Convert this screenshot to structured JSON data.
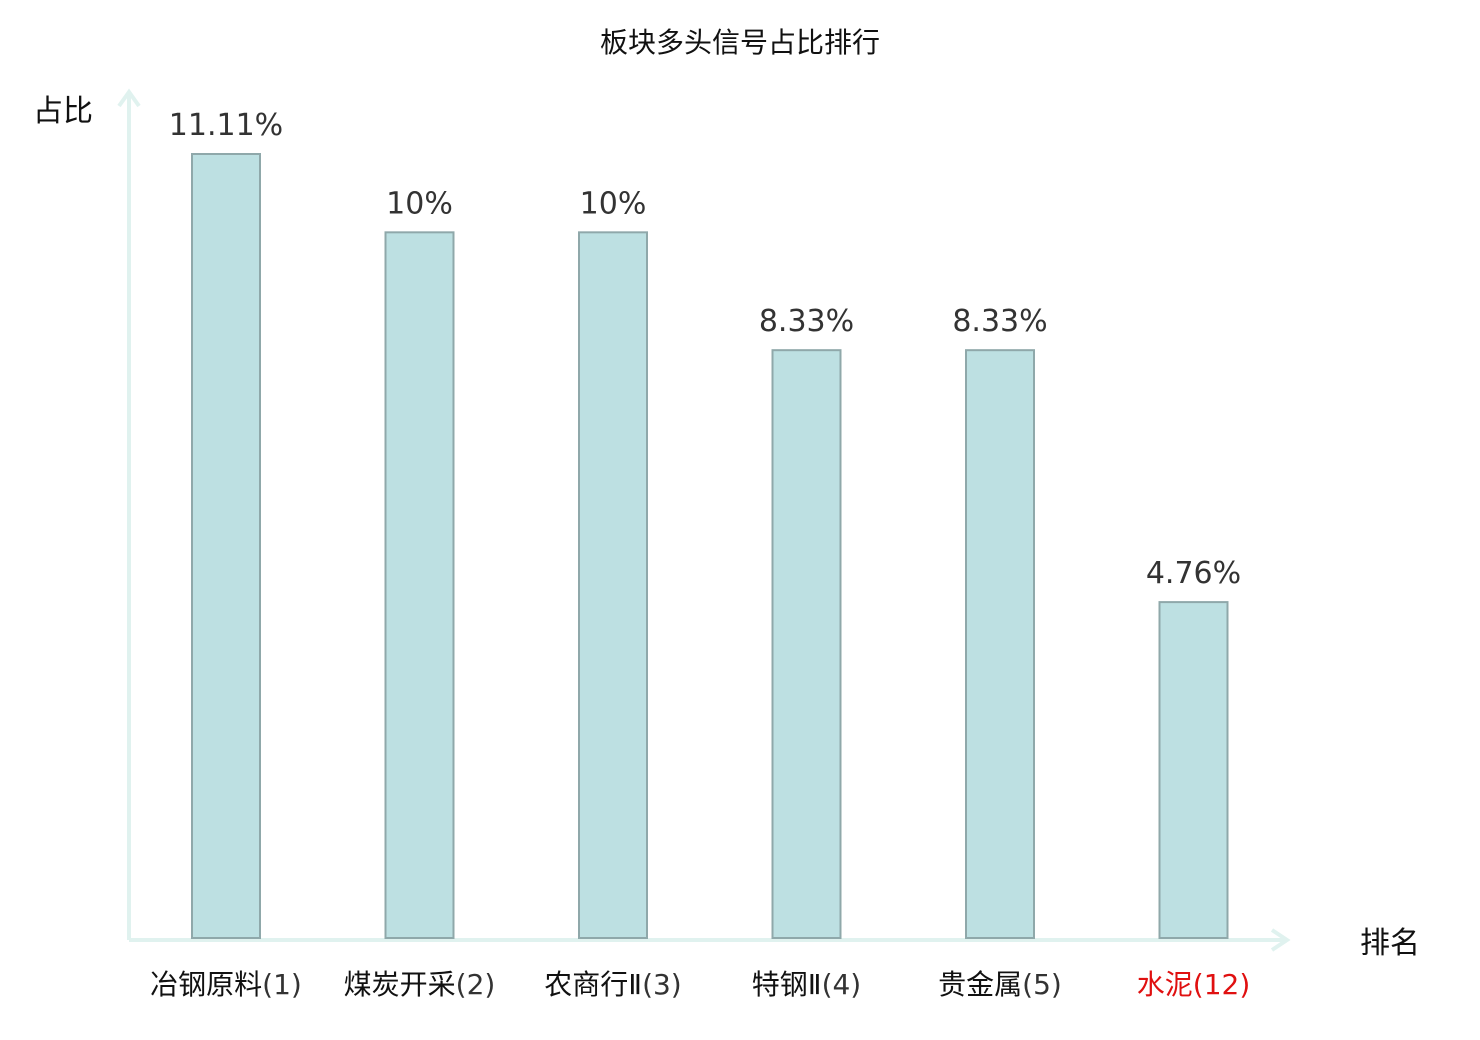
{
  "chart_data": {
    "type": "bar",
    "title": "板块多头信号占比排行",
    "xlabel": "排名",
    "ylabel": "占比",
    "categories": [
      {
        "name": "冶钢原料",
        "rank": "(1)",
        "highlight": false
      },
      {
        "name": "煤炭开采",
        "rank": "(2)",
        "highlight": false
      },
      {
        "name": "农商行Ⅱ",
        "rank": "(3)",
        "highlight": false
      },
      {
        "name": "特钢Ⅱ",
        "rank": "(4)",
        "highlight": false
      },
      {
        "name": "贵金属",
        "rank": "(5)",
        "highlight": false
      },
      {
        "name": "水泥",
        "rank": "(12)",
        "highlight": true
      }
    ],
    "values": [
      11.11,
      10,
      10,
      8.33,
      8.33,
      4.76
    ],
    "value_labels": [
      "11.11%",
      "10%",
      "10%",
      "8.33%",
      "8.33%",
      "4.76%"
    ],
    "ylim": [
      0,
      12
    ],
    "grid": false,
    "colors": {
      "bar_fill": "#bde0e2",
      "bar_stroke": "#8fa8aa",
      "axis": "#e0f2ef",
      "text": "#111111",
      "rank_text": "#333333",
      "highlight": "#e01010"
    }
  }
}
